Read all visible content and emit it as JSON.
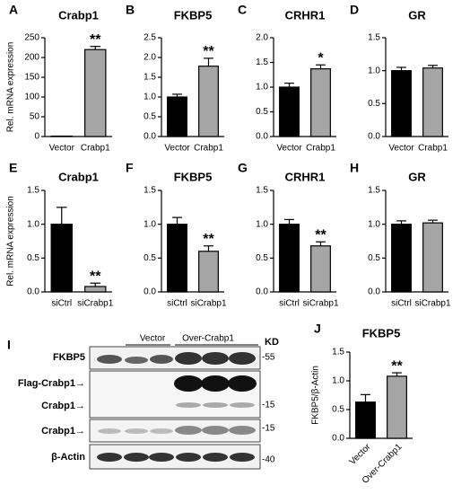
{
  "chart_data": [
    {
      "type": "bar",
      "panel": "A",
      "title": "Crabp1",
      "ylabel": "Rel. mRNA expression",
      "categories": [
        "Vector",
        "Crabp1"
      ],
      "values": [
        1,
        220
      ],
      "errors": [
        0,
        8
      ],
      "significance": [
        null,
        "**"
      ],
      "colors": [
        "#000000",
        "#a6a6a6"
      ],
      "ylim": [
        0,
        250
      ],
      "yticks": [
        0,
        50,
        100,
        150,
        200,
        250
      ]
    },
    {
      "type": "bar",
      "panel": "B",
      "title": "FKBP5",
      "categories": [
        "Vector",
        "Crabp1"
      ],
      "values": [
        1.0,
        1.78
      ],
      "errors": [
        0.07,
        0.2
      ],
      "significance": [
        null,
        "**"
      ],
      "colors": [
        "#000000",
        "#a6a6a6"
      ],
      "ylim": [
        0,
        2.5
      ],
      "yticks": [
        {
          "value": 0,
          "label": "0.0"
        },
        0.5,
        {
          "value": 1,
          "label": "1.0"
        },
        1.5,
        {
          "value": 2,
          "label": "2.0"
        },
        2.5
      ]
    },
    {
      "type": "bar",
      "panel": "C",
      "title": "CRHR1",
      "categories": [
        "Vector",
        "Crabp1"
      ],
      "values": [
        1.0,
        1.37
      ],
      "errors": [
        0.08,
        0.08
      ],
      "significance": [
        null,
        "*"
      ],
      "colors": [
        "#000000",
        "#a6a6a6"
      ],
      "ylim": [
        0,
        2
      ],
      "yticks": [
        {
          "value": 0,
          "label": "0.0"
        },
        0.5,
        {
          "value": 1,
          "label": "1.0"
        },
        1.5,
        {
          "value": 2,
          "label": "2.0"
        }
      ]
    },
    {
      "type": "bar",
      "panel": "D",
      "title": "GR",
      "categories": [
        "Vector",
        "Crabp1"
      ],
      "values": [
        1.0,
        1.04
      ],
      "errors": [
        0.05,
        0.04
      ],
      "significance": [
        null,
        null
      ],
      "colors": [
        "#000000",
        "#a6a6a6"
      ],
      "ylim": [
        0,
        1.5
      ],
      "yticks": [
        {
          "value": 0,
          "label": "0.0"
        },
        0.5,
        {
          "value": 1,
          "label": "1.0"
        },
        1.5
      ]
    },
    {
      "type": "bar",
      "panel": "E",
      "title": "Crabp1",
      "ylabel": "Rel. mRNA expression",
      "categories": [
        "siCtrl",
        "siCrabp1"
      ],
      "values": [
        1.0,
        0.08
      ],
      "errors": [
        0.25,
        0.05
      ],
      "significance": [
        null,
        "**"
      ],
      "colors": [
        "#000000",
        "#a6a6a6"
      ],
      "ylim": [
        0,
        1.5
      ],
      "yticks": [
        {
          "value": 0,
          "label": "0.0"
        },
        0.5,
        {
          "value": 1,
          "label": "1.0"
        },
        1.5
      ]
    },
    {
      "type": "bar",
      "panel": "F",
      "title": "FKBP5",
      "categories": [
        "siCtrl",
        "siCrabp1"
      ],
      "values": [
        1.0,
        0.6
      ],
      "errors": [
        0.1,
        0.08
      ],
      "significance": [
        null,
        "**"
      ],
      "colors": [
        "#000000",
        "#a6a6a6"
      ],
      "ylim": [
        0,
        1.5
      ],
      "yticks": [
        {
          "value": 0,
          "label": "0.0"
        },
        0.5,
        {
          "value": 1,
          "label": "1.0"
        },
        1.5
      ]
    },
    {
      "type": "bar",
      "panel": "G",
      "title": "CRHR1",
      "categories": [
        "siCtrl",
        "siCrabp1"
      ],
      "values": [
        1.0,
        0.68
      ],
      "errors": [
        0.07,
        0.06
      ],
      "significance": [
        null,
        "**"
      ],
      "colors": [
        "#000000",
        "#a6a6a6"
      ],
      "ylim": [
        0,
        1.5
      ],
      "yticks": [
        {
          "value": 0,
          "label": "0.0"
        },
        0.5,
        {
          "value": 1,
          "label": "1.0"
        },
        1.5
      ]
    },
    {
      "type": "bar",
      "panel": "H",
      "title": "GR",
      "categories": [
        "siCtrl",
        "siCrabp1"
      ],
      "values": [
        1.0,
        1.02
      ],
      "errors": [
        0.05,
        0.04
      ],
      "significance": [
        null,
        null
      ],
      "colors": [
        "#000000",
        "#a6a6a6"
      ],
      "ylim": [
        0,
        1.5
      ],
      "yticks": [
        {
          "value": 0,
          "label": "0.0"
        },
        0.5,
        {
          "value": 1,
          "label": "1.0"
        },
        1.5
      ]
    },
    {
      "type": "bar",
      "panel": "J",
      "title": "FKBP5",
      "ylabel": "FKBP5/β-Actin",
      "categories": [
        "Vector",
        "Over-Crabp1"
      ],
      "values": [
        0.63,
        1.08
      ],
      "errors": [
        0.13,
        0.06
      ],
      "significance": [
        null,
        "**"
      ],
      "colors": [
        "#000000",
        "#a6a6a6"
      ],
      "ylim": [
        0,
        1.5
      ],
      "yticks": [
        {
          "value": 0,
          "label": "0.0"
        },
        0.5,
        {
          "value": 1,
          "label": "1.0"
        },
        1.5
      ]
    }
  ],
  "blot": {
    "panel": "I",
    "groups": [
      "Vector",
      "Over-Crabp1"
    ],
    "unit": "KD",
    "rows": [
      {
        "label": "FKBP5",
        "marker": "-55"
      },
      {
        "label": "Flag-Crabp1→",
        "marker": null
      },
      {
        "label": "Crabp1→",
        "marker": "-15"
      },
      {
        "label": "Crabp1→",
        "marker": "-15"
      },
      {
        "label": "β-Actin",
        "marker": "-40"
      }
    ]
  }
}
